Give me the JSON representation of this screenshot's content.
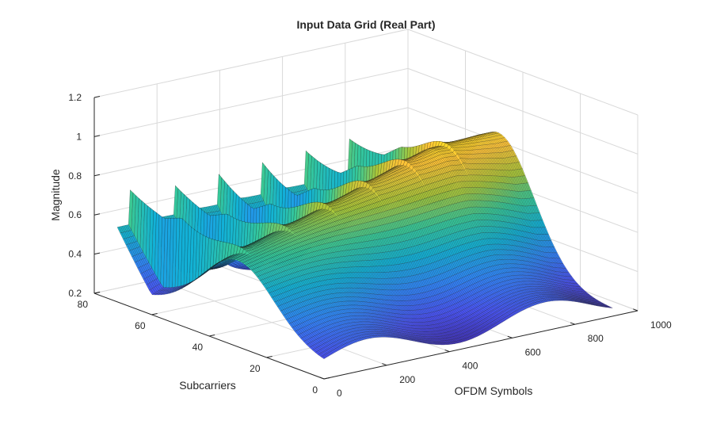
{
  "chart_data": {
    "type": "surface",
    "title": "Input Data Grid (Real Part)",
    "xlabel": "OFDM Symbols",
    "ylabel": "Subcarriers",
    "zlabel": "Magnitude",
    "xlim": [
      0,
      1000
    ],
    "ylim": [
      0,
      80
    ],
    "zlim": [
      0.2,
      1.2
    ],
    "xticks": [
      0,
      200,
      400,
      600,
      800,
      1000
    ],
    "yticks": [
      0,
      20,
      40,
      60,
      80
    ],
    "zticks": [
      0.2,
      0.4,
      0.6,
      0.8,
      1,
      1.2
    ],
    "xtick_labels": [
      "0",
      "200",
      "400",
      "600",
      "800",
      "1000"
    ],
    "ytick_labels": [
      "0",
      "20",
      "40",
      "60",
      "80"
    ],
    "ztick_labels": [
      "0.2",
      "0.4",
      "0.6",
      "0.8",
      "1",
      "1.2"
    ],
    "colormap": "parula",
    "grid": true,
    "surface": {
      "x_samples": 180,
      "y_samples": 72,
      "x_extent": [
        0,
        920
      ],
      "y_extent": [
        0,
        72
      ],
      "ridge_period_symbols": 140,
      "ridge_count": 6,
      "ridge_phase_symbols": 40,
      "ridge_peak": 1.0,
      "ridge_width_subcarriers": 18,
      "ridge_decay_subcarriers": 22,
      "base_magnitude": 0.28,
      "base_variation": 0.06,
      "far_edge_magnitude": 0.58,
      "hump_peak_magnitude": 0.92,
      "hump_center_subcarrier": 30,
      "hump_width_subcarriers": 18,
      "hump_center_symbol_start": 180,
      "hump_center_symbol_end": 880,
      "hump_start_magnitude": 0.64
    }
  }
}
